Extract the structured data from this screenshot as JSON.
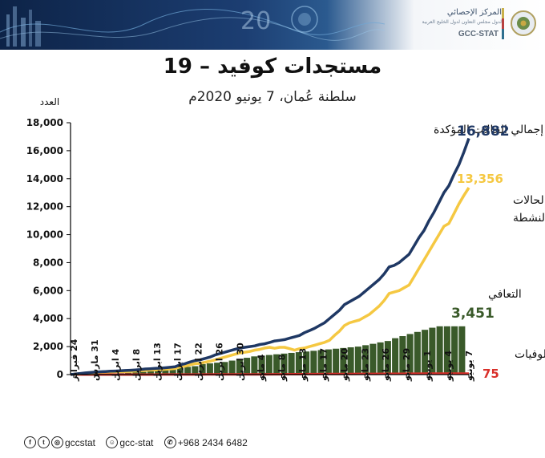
{
  "header": {
    "org_name_ar": "المركز الإحصائي",
    "org_subtitle_ar": "لدول مجلس التعاون لدول الخليج العربية",
    "org_name_en": "GCC-STAT",
    "decor_text": "20"
  },
  "title": "مستجدات كوفيد – 19",
  "subtitle": "سلطنة عُمان، 7 يونيو 2020م",
  "footer": {
    "handle_1": "gccstat",
    "handle_2": "gcc-stat",
    "phone": "+968 2434 6482"
  },
  "colors": {
    "total": "#1f3864",
    "active": "#f5c842",
    "recovered": "#3a5a2a",
    "deaths": "#d9302a",
    "recovered_label": "#3a5a2a"
  },
  "chart_data": {
    "type": "line",
    "ylabel": "العدد",
    "ylim": [
      0,
      18000
    ],
    "yticks": [
      "0",
      "2,000",
      "4,000",
      "6,000",
      "8,000",
      "10,000",
      "12,000",
      "14,000",
      "16,000",
      "18,000"
    ],
    "grid": false,
    "x_tick_labels": [
      "24 فبراير",
      "31 مارس",
      "4 ابريل",
      "8 ابريل",
      "13 ابريل",
      "17 ابريل",
      "22 ابريل",
      "26 ابريل",
      "30 ابريل",
      "4 مايو",
      "8 مايو",
      "13 مايو",
      "17 مايو",
      "20 مايو",
      "23 مايو",
      "26 مايو",
      "29 مايو",
      "1 يونيو",
      "4 يونيو",
      "7 يونيو"
    ],
    "series": [
      {
        "name": "إجمالي الحالات المؤكدة",
        "kind": "line",
        "end_label": "16,882",
        "values": [
          0,
          40,
          80,
          120,
          150,
          180,
          200,
          220,
          240,
          250,
          270,
          290,
          310,
          330,
          360,
          400,
          420,
          440,
          460,
          490,
          520,
          560,
          700,
          780,
          900,
          1000,
          1050,
          1150,
          1250,
          1400,
          1500,
          1600,
          1700,
          1800,
          1900,
          1950,
          2000,
          2050,
          2150,
          2200,
          2300,
          2400,
          2450,
          2500,
          2600,
          2700,
          2800,
          3000,
          3150,
          3300,
          3500,
          3700,
          4000,
          4300,
          4600,
          5000,
          5200,
          5400,
          5600,
          5900,
          6200,
          6500,
          6800,
          7200,
          7700,
          7800,
          8000,
          8300,
          8600,
          9200,
          9800,
          10300,
          11000,
          11600,
          12300,
          13000,
          13500,
          14300,
          15000,
          15900,
          16882
        ]
      },
      {
        "name": "الحالات النشطة",
        "kind": "line",
        "end_label": "13,356",
        "values": [
          0,
          30,
          60,
          100,
          120,
          150,
          170,
          180,
          190,
          200,
          210,
          220,
          230,
          250,
          270,
          300,
          320,
          330,
          350,
          380,
          400,
          430,
          550,
          600,
          700,
          780,
          800,
          880,
          950,
          1050,
          1150,
          1250,
          1350,
          1450,
          1550,
          1600,
          1650,
          1750,
          1800,
          1900,
          1950,
          1880,
          1950,
          1950,
          1850,
          1750,
          1850,
          1900,
          2000,
          2100,
          2200,
          2300,
          2450,
          2800,
          3100,
          3500,
          3700,
          3800,
          3900,
          4100,
          4300,
          4600,
          4900,
          5300,
          5800,
          5900,
          6000,
          6200,
          6400,
          7000,
          7600,
          8200,
          8800,
          9400,
          10000,
          10600,
          10800,
          11500,
          12200,
          12800,
          13356
        ]
      },
      {
        "name": "التعافي",
        "kind": "bar",
        "end_label": "3,451",
        "values": [
          0,
          20,
          40,
          60,
          80,
          100,
          130,
          160,
          190,
          240,
          280,
          350,
          420,
          480,
          550,
          600,
          750,
          800,
          850,
          900,
          1000,
          1100,
          1200,
          1300,
          1350,
          1400,
          1450,
          1500,
          1550,
          1600,
          1650,
          1700,
          1750,
          1800,
          1850,
          1900,
          1950,
          2000,
          2100,
          2200,
          2300,
          2400,
          2600,
          2750,
          2900,
          3050,
          3200,
          3350,
          3451,
          3451,
          3451,
          3451
        ]
      },
      {
        "name": "الوفيات",
        "kind": "line",
        "end_label": "75",
        "values": [
          0,
          0,
          0,
          0,
          0,
          0,
          1,
          1,
          2,
          2,
          2,
          3,
          4,
          5,
          6,
          8,
          10,
          11,
          12,
          12,
          14,
          16,
          18,
          20,
          22,
          24,
          27,
          30,
          34,
          37,
          40,
          42,
          45,
          48,
          50,
          52,
          54,
          56,
          58,
          60,
          62,
          64,
          66,
          68,
          70,
          72,
          73,
          75
        ]
      }
    ]
  }
}
